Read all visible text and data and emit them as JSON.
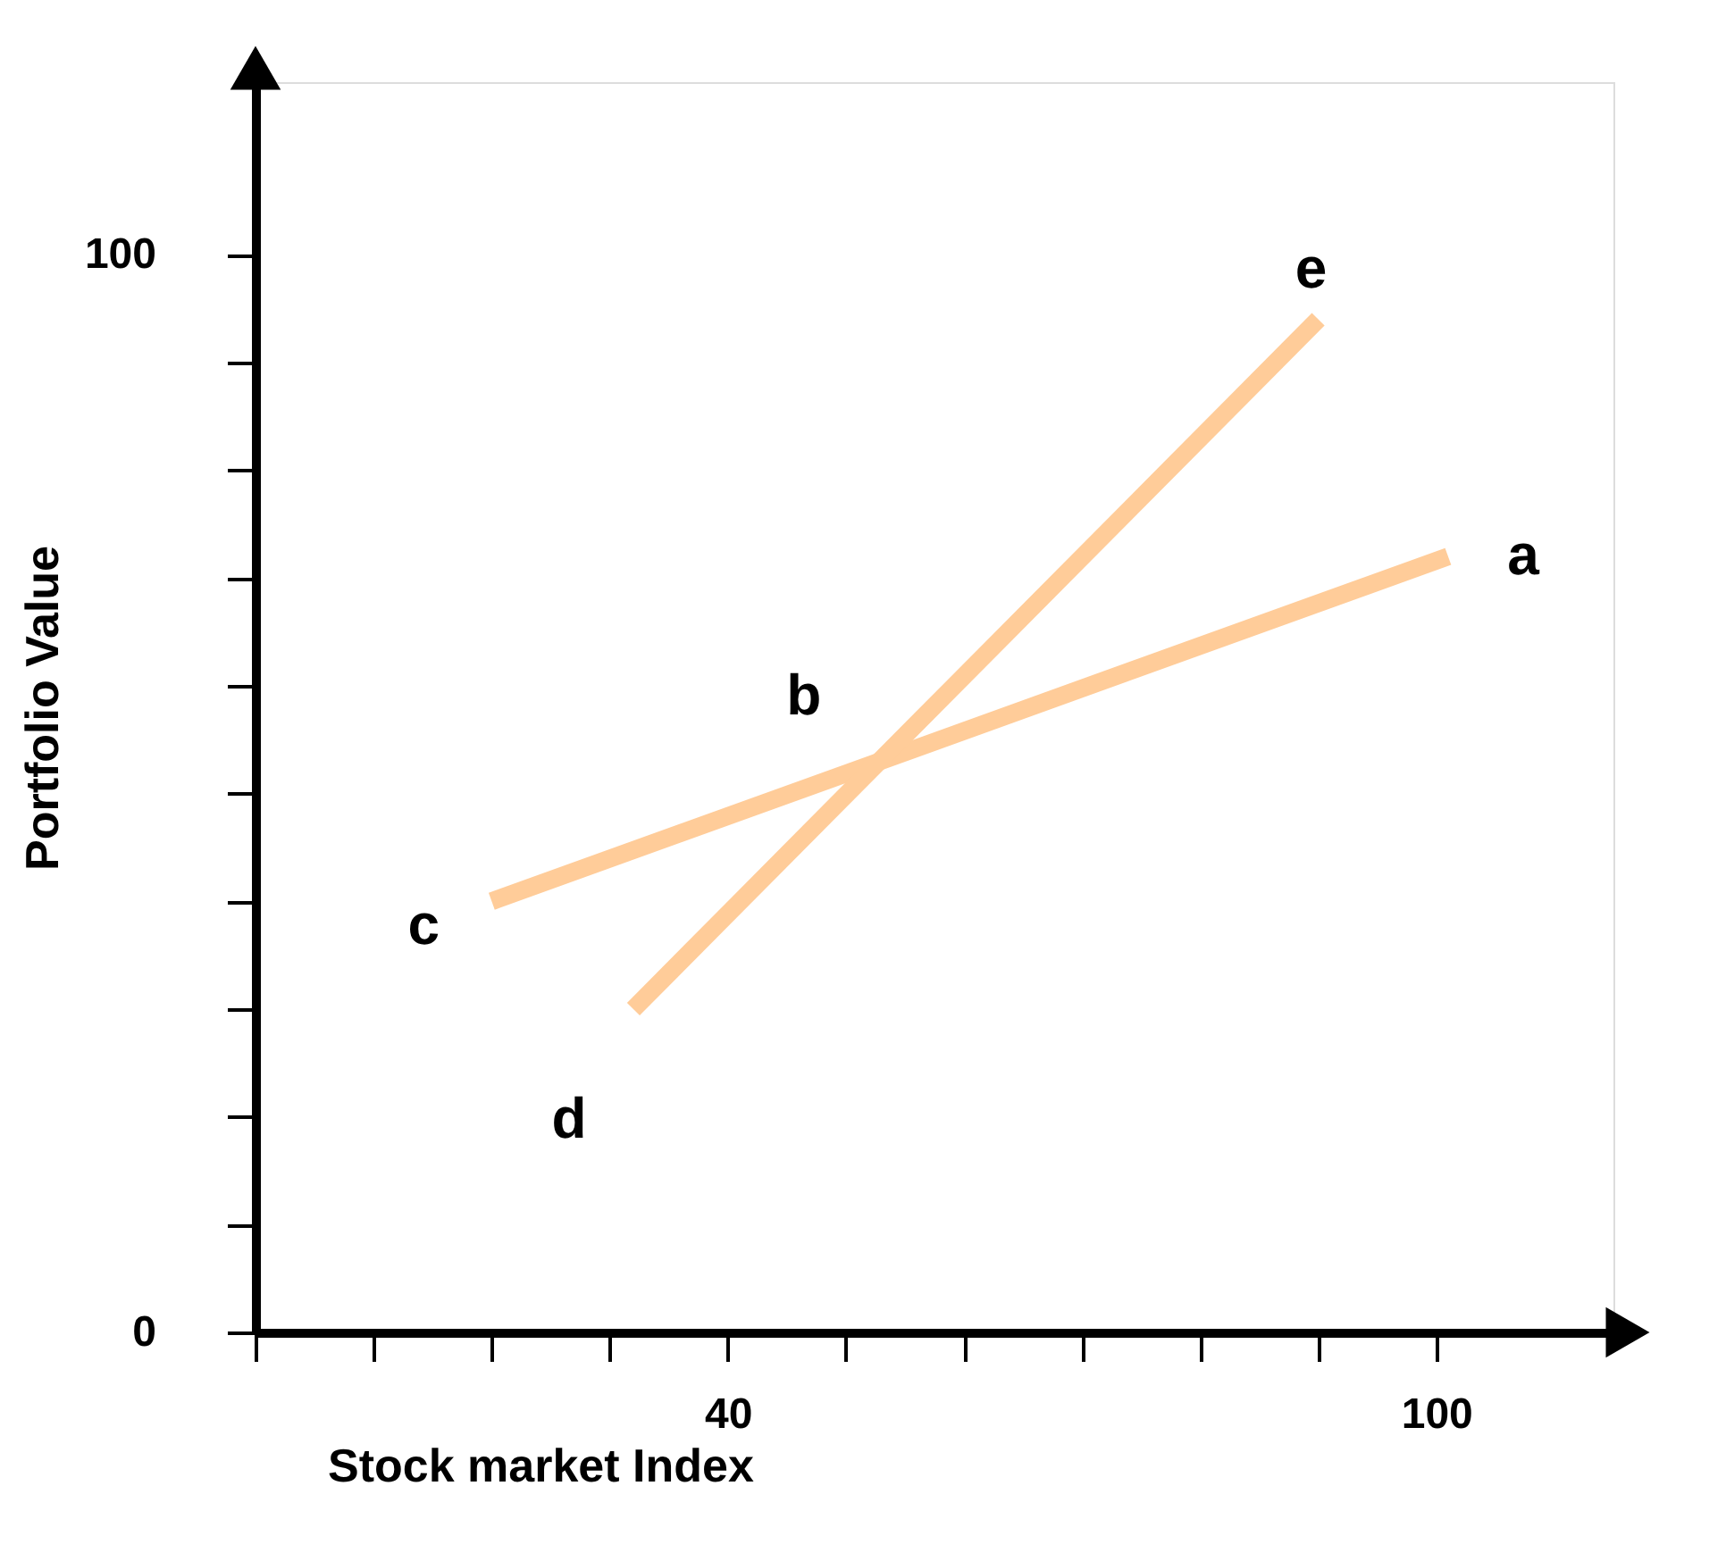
{
  "chart_data": {
    "type": "line",
    "xlabel": "Stock market Index",
    "ylabel": "Portfolio Value",
    "xlim": [
      0,
      115
    ],
    "ylim": [
      0,
      116
    ],
    "xticks": [
      {
        "value": 0,
        "label": null
      },
      {
        "value": 10,
        "label": null
      },
      {
        "value": 20,
        "label": null
      },
      {
        "value": 30,
        "label": null
      },
      40,
      {
        "value": 50,
        "label": null
      },
      {
        "value": 60,
        "label": null
      },
      {
        "value": 70,
        "label": null
      },
      {
        "value": 80,
        "label": null
      },
      {
        "value": 90,
        "label": null
      },
      100
    ],
    "yticks": [
      0,
      {
        "value": 10,
        "label": null
      },
      {
        "value": 20,
        "label": null
      },
      {
        "value": 30,
        "label": null
      },
      {
        "value": 40,
        "label": null
      },
      {
        "value": 50,
        "label": null
      },
      {
        "value": 60,
        "label": null
      },
      {
        "value": 70,
        "label": null
      },
      {
        "value": 80,
        "label": null
      },
      {
        "value": 90,
        "label": null
      },
      100
    ],
    "series": [
      {
        "color": "#ffcc99",
        "x": [
          20,
          101
        ],
        "values": [
          40,
          72
        ]
      },
      {
        "color": "#ffcc99",
        "x": [
          32,
          90
        ],
        "values": [
          30,
          94
        ]
      }
    ],
    "annotations": [
      {
        "text": "a",
        "x": 101,
        "y": 72
      },
      {
        "text": "b",
        "x": 52.8,
        "y": 53
      },
      {
        "text": "c",
        "x": 20,
        "y": 40
      },
      {
        "text": "d",
        "x": 32,
        "y": 30
      },
      {
        "text": "e",
        "x": 90,
        "y": 94
      }
    ],
    "grid": false,
    "legend": false,
    "line_style": "solid",
    "marker": "none"
  }
}
